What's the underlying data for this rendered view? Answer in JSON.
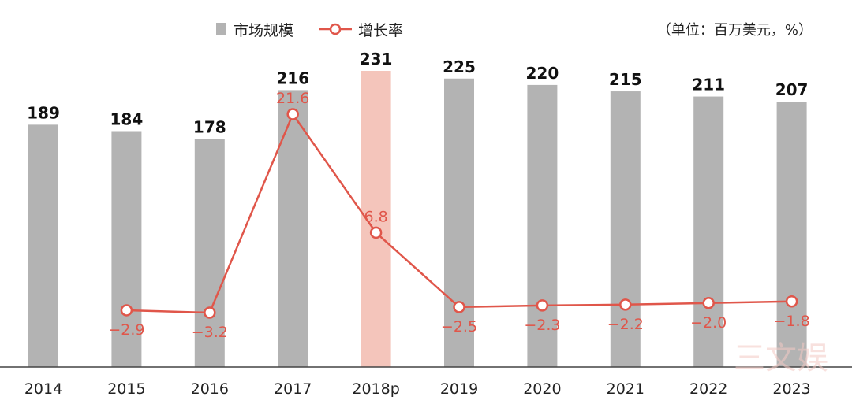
{
  "chart_data": {
    "type": "bar",
    "categories": [
      "2014",
      "2015",
      "2016",
      "2017",
      "2018p",
      "2019",
      "2020",
      "2021",
      "2022",
      "2023"
    ],
    "unit_note": "（单位：百万美元，%）",
    "series": [
      {
        "name": "市场规模",
        "type": "bar",
        "values": [
          189,
          184,
          178,
          216,
          231,
          225,
          220,
          215,
          211,
          207
        ],
        "color": "#b3b3b3",
        "highlight_index": 4,
        "highlight_color": "#f4c5bb"
      },
      {
        "name": "增长率",
        "type": "line",
        "x": [
          "2015",
          "2016",
          "2017",
          "2018p",
          "2019",
          "2020",
          "2021",
          "2022",
          "2023"
        ],
        "values": [
          -2.9,
          -3.2,
          21.6,
          6.8,
          -2.5,
          -2.3,
          -2.2,
          -2.0,
          -1.8
        ],
        "color": "#e0564a"
      }
    ],
    "ylim_bar": [
      0,
      250
    ],
    "ylim_line": [
      -12,
      32
    ],
    "legend_position": "top-center",
    "grid": false
  },
  "watermark": "三文娱"
}
